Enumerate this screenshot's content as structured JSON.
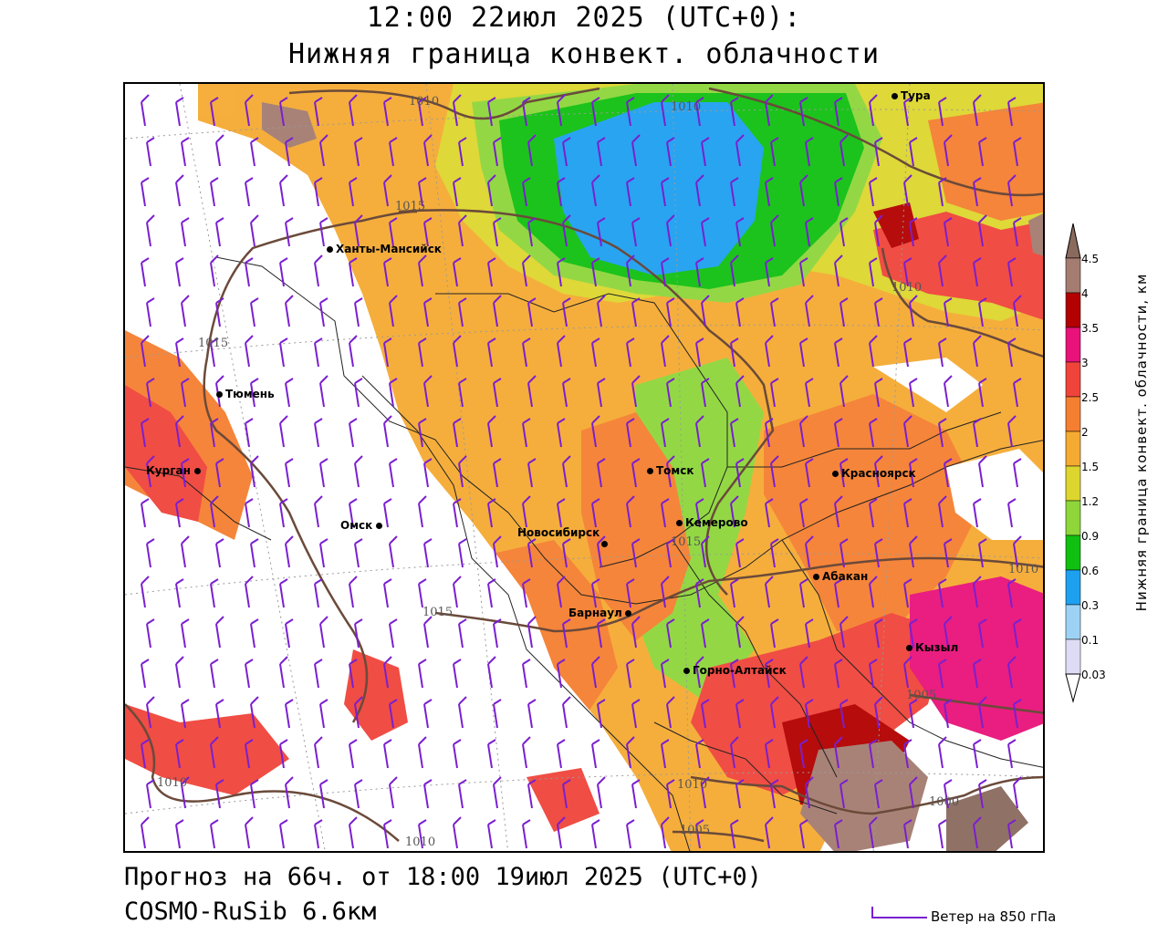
{
  "title": {
    "line1": "12:00 22июл 2025 (UTC+0):",
    "line2": "Нижняя граница конвект. облачности"
  },
  "footer": {
    "forecast": "Прогноз на 66ч. от 18:00 19июл 2025 (UTC+0)",
    "model": "COSMO-RuSib 6.6км",
    "wind_legend": "Ветер на 850 гПа"
  },
  "colorbar": {
    "title": "Нижняя граница конвект. облачности, км",
    "levels": [
      {
        "label": "4.5",
        "color": "#8b6a5e"
      },
      {
        "label": "4",
        "color": "#a47c70"
      },
      {
        "label": "3.5",
        "color": "#b30000"
      },
      {
        "label": "3",
        "color": "#e8127a"
      },
      {
        "label": "2.5",
        "color": "#f0443a"
      },
      {
        "label": "2",
        "color": "#f57f30"
      },
      {
        "label": "1.5",
        "color": "#f5aa32"
      },
      {
        "label": "1.2",
        "color": "#ddd62e"
      },
      {
        "label": "0.9",
        "color": "#8ed63a"
      },
      {
        "label": "0.6",
        "color": "#10c010"
      },
      {
        "label": "0.3",
        "color": "#1ea0f0"
      },
      {
        "label": "0.1",
        "color": "#9ed2f5"
      },
      {
        "label": "0.03",
        "color": "#dedcf5"
      }
    ]
  },
  "cities": [
    {
      "name": "Тура"
    },
    {
      "name": "Ханты-Мансийск"
    },
    {
      "name": "Тюмень"
    },
    {
      "name": "Курган"
    },
    {
      "name": "Омск"
    },
    {
      "name": "Томск"
    },
    {
      "name": "Красноярск"
    },
    {
      "name": "Кемерово"
    },
    {
      "name": "Новосибирск"
    },
    {
      "name": "Абакан"
    },
    {
      "name": "Барнаул"
    },
    {
      "name": "Кызыл"
    },
    {
      "name": "Горно-Алтайск"
    }
  ],
  "isobars": [
    "1010",
    "1010",
    "1015",
    "1010",
    "1015",
    "1015",
    "1015",
    "1010",
    "1005",
    "1010",
    "1010",
    "1000",
    "1005",
    "1010"
  ],
  "colors": {
    "border": "#000000",
    "isobar": "#6b4a3a",
    "wind_barb": "#7a1fd0"
  }
}
